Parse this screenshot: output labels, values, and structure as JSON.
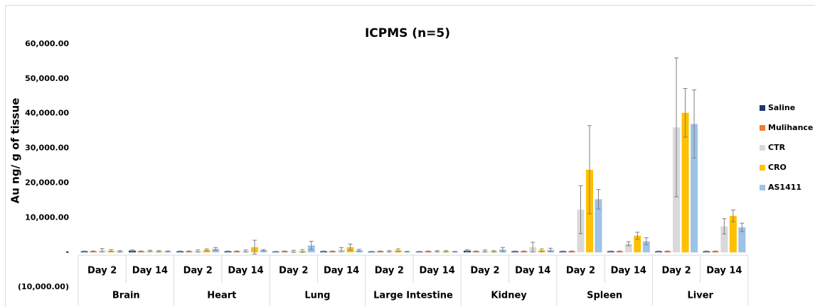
{
  "chart_data": {
    "type": "bar",
    "title": "ICPMS (n=5)",
    "y_label": "Au ng/ g of tissue",
    "categories": [
      "Day 2",
      "Day 14",
      "Day 2",
      "Day 14",
      "Day 2",
      "Day 14",
      "Day 2",
      "Day 14",
      "Day 2",
      "Day 14",
      "Day 2",
      "Day 14",
      "Day 2",
      "Day 14"
    ],
    "groups": [
      "Brain",
      "Heart",
      "Lung",
      "Large Intestine",
      "Kidney",
      "Spleen",
      "Liver"
    ],
    "series": [
      {
        "name": "Saline",
        "color": "#1f3864",
        "values": [
          300,
          500,
          300,
          300,
          200,
          300,
          200,
          200,
          500,
          300,
          300,
          300,
          300,
          300
        ],
        "errors": [
          100,
          200,
          100,
          100,
          100,
          100,
          100,
          100,
          300,
          100,
          100,
          100,
          100,
          100
        ]
      },
      {
        "name": "Mulihance",
        "color": "#ed7d31",
        "values": [
          300,
          300,
          300,
          300,
          300,
          300,
          300,
          300,
          300,
          300,
          300,
          300,
          300,
          300
        ],
        "errors": [
          100,
          100,
          100,
          100,
          100,
          100,
          100,
          100,
          100,
          100,
          100,
          100,
          100,
          100
        ]
      },
      {
        "name": "CTR",
        "color": "#d9d9d9",
        "values": [
          600,
          400,
          400,
          400,
          300,
          800,
          300,
          300,
          400,
          1500,
          12300,
          2500,
          36000,
          7500
        ],
        "errors": [
          500,
          200,
          300,
          300,
          300,
          600,
          200,
          200,
          300,
          1400,
          6900,
          600,
          20000,
          2200
        ]
      },
      {
        "name": "CRO",
        "color": "#ffc000",
        "values": [
          500,
          300,
          700,
          1500,
          400,
          1500,
          600,
          300,
          300,
          600,
          23800,
          4800,
          40200,
          10500
        ],
        "errors": [
          300,
          200,
          300,
          2000,
          400,
          900,
          400,
          200,
          200,
          400,
          12700,
          1000,
          7000,
          1700
        ]
      },
      {
        "name": "AS1411",
        "color": "#9dc3e6",
        "values": [
          300,
          300,
          1000,
          600,
          2000,
          600,
          200,
          200,
          800,
          700,
          15300,
          3200,
          37000,
          7200
        ],
        "errors": [
          200,
          100,
          400,
          200,
          1200,
          300,
          100,
          100,
          600,
          500,
          2800,
          1000,
          9800,
          1200
        ]
      }
    ],
    "ylim": [
      -10000,
      60000
    ],
    "yticks": [
      {
        "value": -10000,
        "label": "(10,000.00)"
      },
      {
        "value": 0,
        "label": "-"
      },
      {
        "value": 10000,
        "label": "10,000.00"
      },
      {
        "value": 20000,
        "label": "20,000.00"
      },
      {
        "value": 30000,
        "label": "30,000.00"
      },
      {
        "value": 40000,
        "label": "40,000.00"
      },
      {
        "value": 50000,
        "label": "50,000.00"
      },
      {
        "value": 60000,
        "label": "60,000.00"
      }
    ],
    "grid": false,
    "legend": "right"
  }
}
